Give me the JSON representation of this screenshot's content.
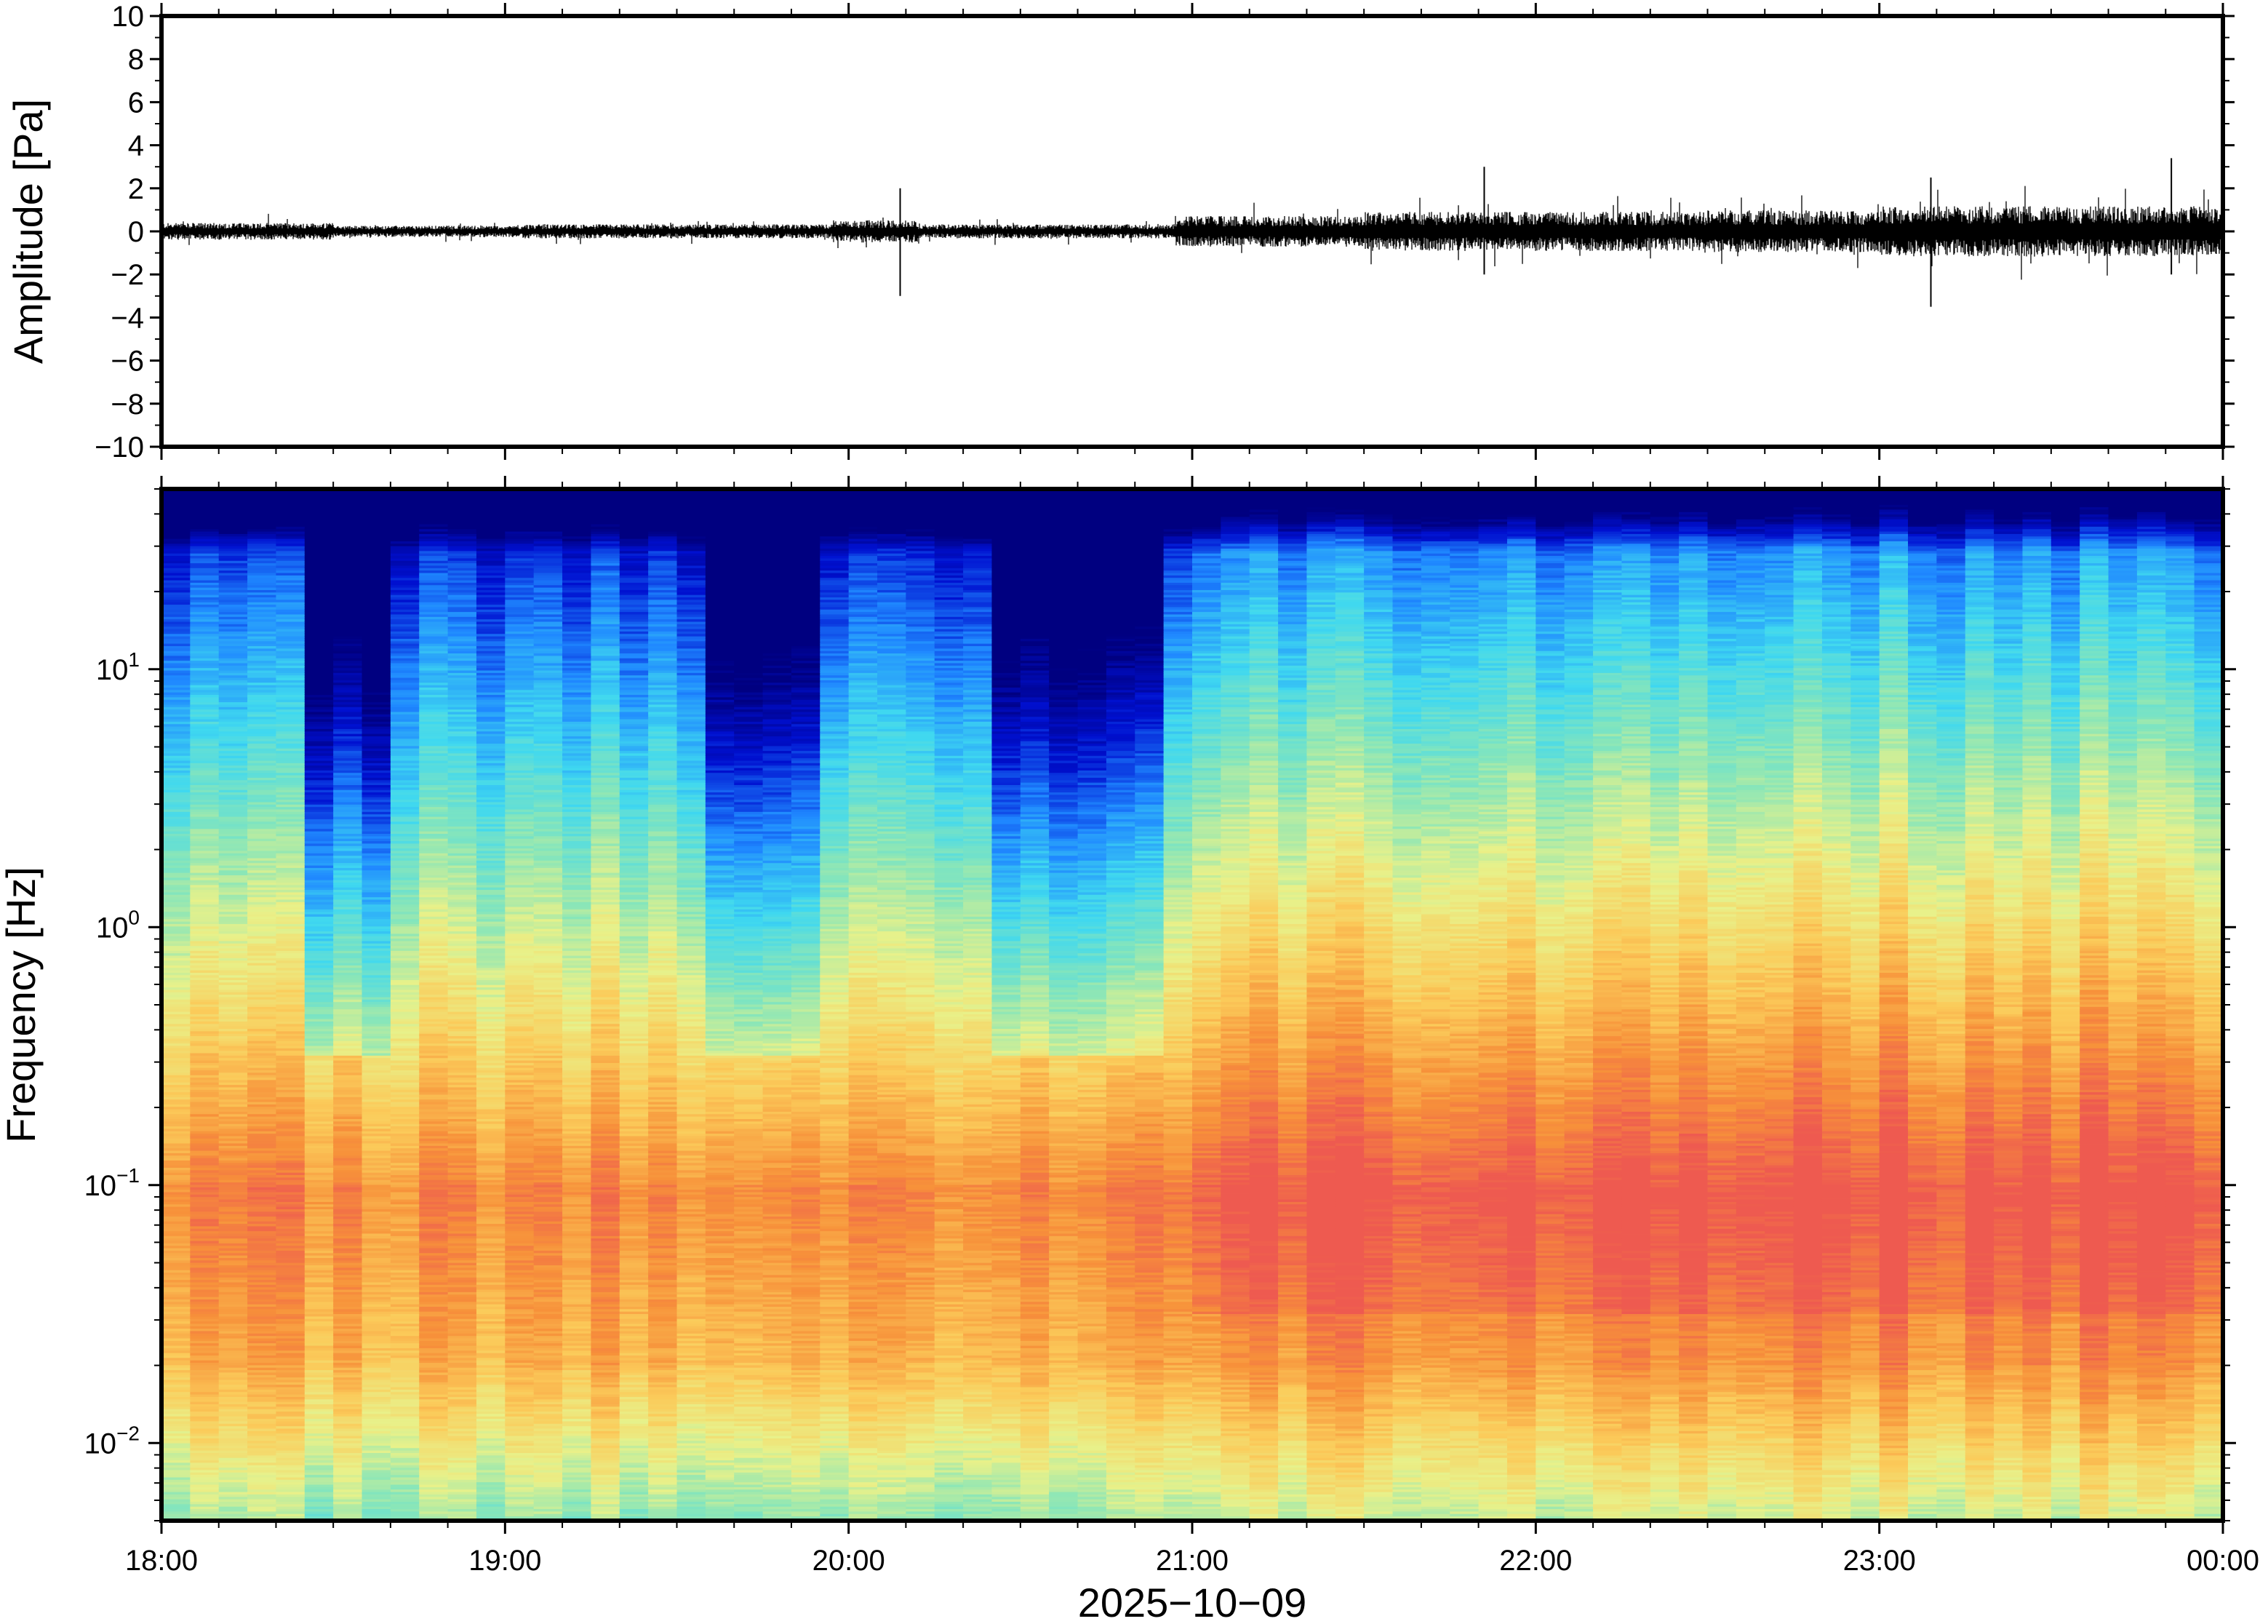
{
  "chart_data": [
    {
      "type": "line",
      "panel": "waveform",
      "ylabel": "Amplitude [Pa]",
      "ylim": [
        -10,
        10
      ],
      "yticks": [
        10,
        8,
        6,
        4,
        2,
        0,
        -2,
        -4,
        -6,
        -8,
        -10
      ],
      "ytick_labels": [
        "10",
        "8",
        "6",
        "4",
        "2",
        "0",
        "−2",
        "−4",
        "−6",
        "−8",
        "−10"
      ],
      "xlim": [
        "18:00",
        "00:00"
      ],
      "series": [
        {
          "segments": [
            {
              "t": [
                0.0,
                0.5
              ],
              "envelope_pa": 0.3
            },
            {
              "t": [
                0.5,
                1.05
              ],
              "envelope_pa": 0.2
            },
            {
              "t": [
                1.05,
                1.95
              ],
              "envelope_pa": 0.25
            },
            {
              "t": [
                1.95,
                2.2
              ],
              "envelope_pa": 0.4
            },
            {
              "t": [
                2.2,
                2.95
              ],
              "envelope_pa": 0.25
            },
            {
              "t": [
                2.95,
                3.5
              ],
              "envelope_pa": 0.55
            },
            {
              "t": [
                3.5,
                4.5
              ],
              "envelope_pa": 0.7
            },
            {
              "t": [
                4.5,
                5.0
              ],
              "envelope_pa": 0.75
            },
            {
              "t": [
                5.0,
                6.0
              ],
              "envelope_pa": 0.9
            }
          ],
          "spikes": [
            {
              "t": 2.15,
              "min": -3.0,
              "max": 2.0
            },
            {
              "t": 3.85,
              "min": -2.0,
              "max": 3.0
            },
            {
              "t": 5.15,
              "min": -3.5,
              "max": 2.5
            },
            {
              "t": 5.85,
              "min": -2.0,
              "max": 3.4
            }
          ]
        }
      ]
    },
    {
      "type": "heatmap",
      "panel": "spectrogram",
      "ylabel": "Frequency [Hz]",
      "xlabel": "2025−10−09",
      "yscale": "log",
      "ylim_hz": [
        0.005,
        50
      ],
      "yticks": [
        {
          "value": 10,
          "base": "10",
          "exp": "1"
        },
        {
          "value": 1,
          "base": "10",
          "exp": "0"
        },
        {
          "value": 0.1,
          "base": "10",
          "exp": "−1"
        },
        {
          "value": 0.01,
          "base": "10",
          "exp": "−2"
        }
      ],
      "xticks": [
        "18:00",
        "19:00",
        "20:00",
        "21:00",
        "22:00",
        "23:00",
        "00:00"
      ],
      "xtick_hours": [
        0,
        1,
        2,
        3,
        4,
        5,
        6
      ],
      "time_bins": 72,
      "colormap": "jet",
      "colors": [
        "#000080",
        "#0010d0",
        "#1f88ff",
        "#3fd8f0",
        "#8ae6b8",
        "#e8f18a",
        "#fbcb5a",
        "#f7913a",
        "#ee5a50"
      ],
      "quiet_periods_hours": [
        [
          0.45,
          0.7
        ],
        [
          1.55,
          1.95
        ],
        [
          2.45,
          2.95
        ]
      ],
      "energetic_periods_hours": [
        [
          3.0,
          6.0
        ]
      ]
    }
  ]
}
